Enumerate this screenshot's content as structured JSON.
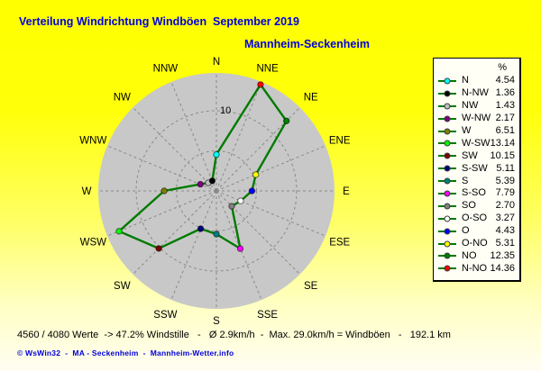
{
  "header": {
    "title": "Verteilung Windrichtung Windböen  September 2019",
    "subtitle": "Mannheim-Seckenheim"
  },
  "legend": {
    "header": "%"
  },
  "chart_data": {
    "type": "radar",
    "title": "Verteilung Windrichtung Windböen  September 2019",
    "subtitle": "Mannheim-Seckenheim",
    "units": "%",
    "rmax": 15,
    "grid_rings": [
      5,
      10
    ],
    "ring_label": "10",
    "grid": "dashed",
    "legend_position": "right",
    "points": [
      {
        "direction": "N",
        "legend_label": "N",
        "value": 4.54,
        "display": "4.54",
        "color": "#00ffff"
      },
      {
        "direction": "NNE",
        "legend_label": "N-NO",
        "value": 14.36,
        "display": "14.36",
        "color": "#ff0000"
      },
      {
        "direction": "NE",
        "legend_label": "NO",
        "value": 12.35,
        "display": "12.35",
        "color": "#008000"
      },
      {
        "direction": "ENE",
        "legend_label": "O-NO",
        "value": 5.31,
        "display": "5.31",
        "color": "#ffff00"
      },
      {
        "direction": "E",
        "legend_label": "O",
        "value": 4.43,
        "display": "4.43",
        "color": "#0000ff"
      },
      {
        "direction": "ESE",
        "legend_label": "O-SO",
        "value": 3.27,
        "display": "3.27",
        "color": "#ffffff"
      },
      {
        "direction": "SE",
        "legend_label": "SO",
        "value": 2.7,
        "display": "2.70",
        "color": "#808080"
      },
      {
        "direction": "SSE",
        "legend_label": "S-SO",
        "value": 7.79,
        "display": "7.79",
        "color": "#ff00ff"
      },
      {
        "direction": "S",
        "legend_label": "S",
        "value": 5.39,
        "display": "5.39",
        "color": "#008080"
      },
      {
        "direction": "SSW",
        "legend_label": "S-SW",
        "value": 5.11,
        "display": "5.11",
        "color": "#000080"
      },
      {
        "direction": "SW",
        "legend_label": "SW",
        "value": 10.15,
        "display": "10.15",
        "color": "#800000"
      },
      {
        "direction": "WSW",
        "legend_label": "W-SW",
        "value": 13.14,
        "display": "13.14",
        "color": "#00ff00"
      },
      {
        "direction": "W",
        "legend_label": "W",
        "value": 6.51,
        "display": "6.51",
        "color": "#808000"
      },
      {
        "direction": "WNW",
        "legend_label": "W-NW",
        "value": 2.17,
        "display": "2.17",
        "color": "#800080"
      },
      {
        "direction": "NW",
        "legend_label": "NW",
        "value": 1.43,
        "display": "1.43",
        "color": "#c0c0c0"
      },
      {
        "direction": "NNW",
        "legend_label": "N-NW",
        "value": 1.36,
        "display": "1.36",
        "color": "#000000"
      }
    ],
    "legend_order": [
      0,
      15,
      14,
      13,
      12,
      11,
      10,
      9,
      8,
      7,
      6,
      5,
      4,
      3,
      2,
      1
    ]
  },
  "footer": {
    "status": "4560 / 4080 Werte  -> 47.2% Windstille   -   Ø 2.9km/h  -  Max. 29.0km/h = Windböen   -   192.1 km",
    "copyright": "© WsWin32  -  MA - Seckenheim  -  Mannheim-Wetter.info"
  },
  "colors": {
    "background_top": "#ffff00",
    "background_bottom": "#fffdf2",
    "title_text": "#0000dc",
    "copyright_text": "#0000dc",
    "status_text": "#000000",
    "disc_fill": "#c8c8c8",
    "grid_line": "#8a8a8a",
    "polygon_line": "#007a00",
    "direction_label": "#000000",
    "legend_background": "#fffff6",
    "legend_border": "#000000"
  }
}
